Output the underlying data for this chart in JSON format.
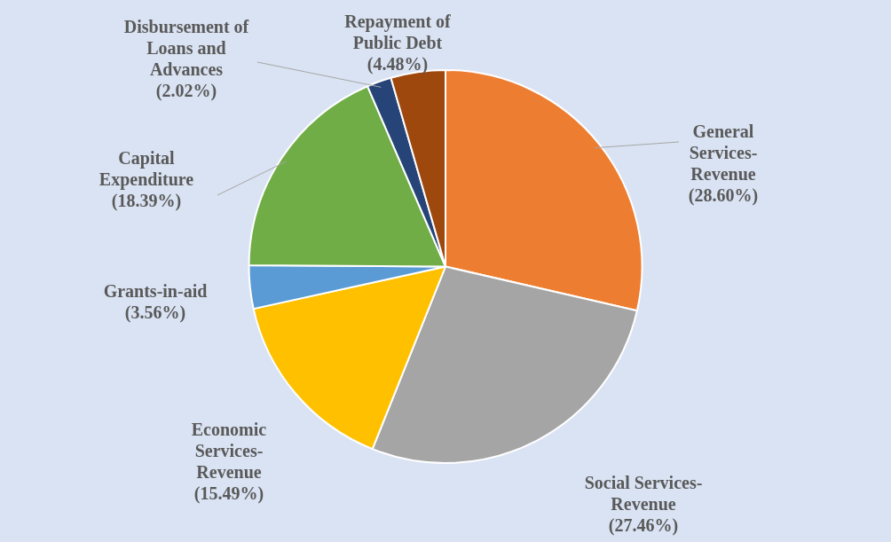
{
  "chart_data": {
    "type": "pie",
    "categories": [
      "General Services-Revenue",
      "Social Services-Revenue",
      "Economic Services-Revenue",
      "Grants-in-aid",
      "Capital Expenditure",
      "Disbursement of Loans and Advances",
      "Repayment of Public Debt"
    ],
    "values": [
      28.6,
      27.46,
      15.49,
      3.56,
      18.39,
      2.02,
      4.48
    ],
    "colors": [
      "#ed7d31",
      "#a5a5a5",
      "#ffc000",
      "#5b9bd5",
      "#70ad47",
      "#264478",
      "#9e480e"
    ],
    "value_labels": [
      "(28.60%)",
      "(27.46%)",
      "(15.49%)",
      "(3.56%)",
      "(18.39%)",
      "(2.02%)",
      "(4.48%)"
    ],
    "legend": false
  }
}
